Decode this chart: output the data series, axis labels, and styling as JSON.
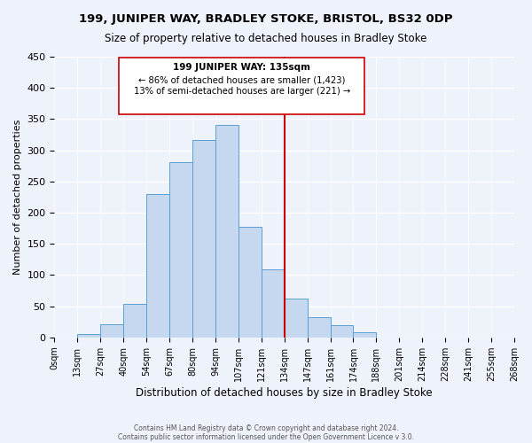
{
  "title1": "199, JUNIPER WAY, BRADLEY STOKE, BRISTOL, BS32 0DP",
  "title2": "Size of property relative to detached houses in Bradley Stoke",
  "xlabel": "Distribution of detached houses by size in Bradley Stoke",
  "ylabel": "Number of detached properties",
  "bar_color": "#c5d8f0",
  "bar_edge_color": "#5a9fd4",
  "bin_labels": [
    "0sqm",
    "13sqm",
    "27sqm",
    "40sqm",
    "54sqm",
    "67sqm",
    "80sqm",
    "94sqm",
    "107sqm",
    "121sqm",
    "134sqm",
    "147sqm",
    "161sqm",
    "174sqm",
    "188sqm",
    "201sqm",
    "214sqm",
    "228sqm",
    "241sqm",
    "255sqm",
    "268sqm"
  ],
  "bar_heights": [
    0,
    6,
    21,
    54,
    230,
    281,
    317,
    341,
    178,
    109,
    62,
    32,
    19,
    8,
    0,
    0,
    0,
    0,
    0,
    0
  ],
  "vline_x": 10,
  "vline_color": "#cc0000",
  "annotation_title": "199 JUNIPER WAY: 135sqm",
  "annotation_line1": "← 86% of detached houses are smaller (1,423)",
  "annotation_line2": "13% of semi-detached houses are larger (221) →",
  "footer1": "Contains HM Land Registry data © Crown copyright and database right 2024.",
  "footer2": "Contains public sector information licensed under the Open Government Licence v 3.0.",
  "ylim": [
    0,
    450
  ],
  "yticks": [
    0,
    50,
    100,
    150,
    200,
    250,
    300,
    350,
    400,
    450
  ],
  "background_color": "#eef2fb",
  "grid_color": "#ffffff"
}
